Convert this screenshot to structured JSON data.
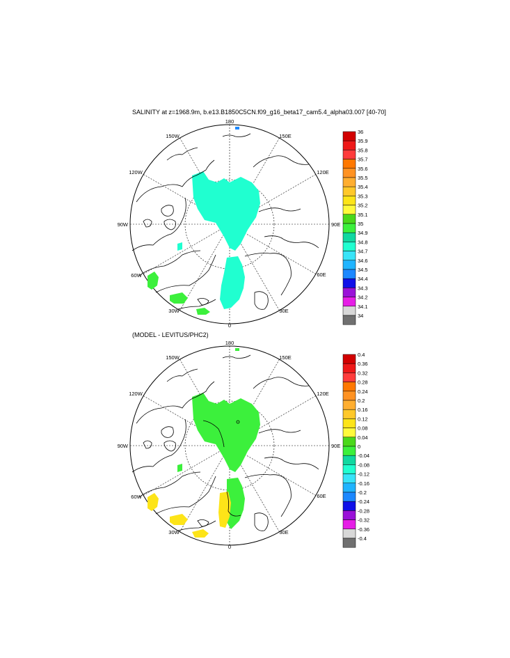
{
  "figure": {
    "title": "SALINITY at z=1968.9m, b.e13.B1850C5CN.f09_g16_beta17_cam5.4_alpha03.007 [40-70]",
    "subtitle": "(MODEL - LEVITUS/PHC2)"
  },
  "map_labels": {
    "top": "180",
    "bottom": "0",
    "left": "90W",
    "right": "90E",
    "ul1": "150W",
    "ul2": "120W",
    "ur1": "150E",
    "ur2": "120E",
    "ll1": "60W",
    "ll2": "30W",
    "lr1": "60E",
    "lr2": "30E"
  },
  "panel1": {
    "colorbar": {
      "labels": [
        "36",
        "35.9",
        "35.8",
        "35.7",
        "35.6",
        "35.5",
        "35.4",
        "35.3",
        "35.2",
        "35.1",
        "35",
        "34.9",
        "34.8",
        "34.7",
        "34.6",
        "34.5",
        "34.4",
        "34.3",
        "34.2",
        "34.1",
        "34"
      ],
      "colors": [
        "#d20000",
        "#ee1818",
        "#ff3c3c",
        "#ff7800",
        "#ff9222",
        "#ffae30",
        "#ffc82a",
        "#fde418",
        "#fffa3c",
        "#4ad81a",
        "#3cf03c",
        "#10d8a0",
        "#20ffd0",
        "#38e4f8",
        "#20b4ff",
        "#1c88ff",
        "#1010e8",
        "#9a12d8",
        "#e61ee6",
        "#d8d8d8"
      ]
    }
  },
  "panel2": {
    "colorbar": {
      "labels": [
        "0.4",
        "0.36",
        "0.32",
        "0.28",
        "0.24",
        "0.2",
        "0.16",
        "0.12",
        "0.08",
        "0.04",
        "0",
        "-0.04",
        "-0.08",
        "-0.12",
        "-0.16",
        "-0.2",
        "-0.24",
        "-0.28",
        "-0.32",
        "-0.36",
        "-0.4"
      ],
      "colors": [
        "#d20000",
        "#ee1818",
        "#ff3c3c",
        "#ff7800",
        "#ff9222",
        "#ffae30",
        "#ffc82a",
        "#fde418",
        "#fffa3c",
        "#4ad81a",
        "#3cf03c",
        "#10d8a0",
        "#20ffd0",
        "#38e4f8",
        "#20b4ff",
        "#1c88ff",
        "#1010e8",
        "#9a12d8",
        "#e61ee6",
        "#d8d8d8"
      ]
    }
  }
}
